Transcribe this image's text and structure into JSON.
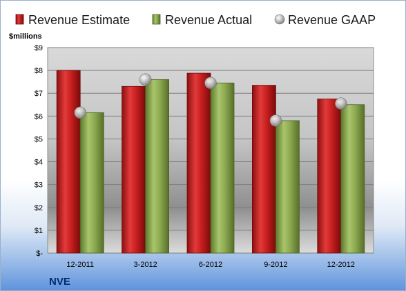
{
  "chart_data": {
    "type": "bar",
    "unit_label": "$millions",
    "categories": [
      "12-2011",
      "3-2012",
      "6-2012",
      "9-2012",
      "12-2012"
    ],
    "series": [
      {
        "name": "Revenue Estimate",
        "kind": "bar",
        "color": "#d42a2a",
        "values": [
          8.0,
          7.3,
          7.88,
          7.35,
          6.75
        ]
      },
      {
        "name": "Revenue Actual",
        "kind": "bar",
        "color": "#8fae52",
        "values": [
          6.15,
          7.6,
          7.45,
          5.8,
          6.5
        ]
      },
      {
        "name": "Revenue GAAP",
        "kind": "marker",
        "color": "#b8b8b8",
        "values": [
          6.15,
          7.6,
          7.45,
          5.8,
          6.55
        ]
      }
    ],
    "y_ticks": [
      "$-",
      "$1",
      "$2",
      "$3",
      "$4",
      "$5",
      "$6",
      "$7",
      "$8",
      "$9"
    ],
    "ylim": [
      0,
      9
    ],
    "grid": true,
    "legend_position": "top",
    "ticker": "NVE"
  }
}
